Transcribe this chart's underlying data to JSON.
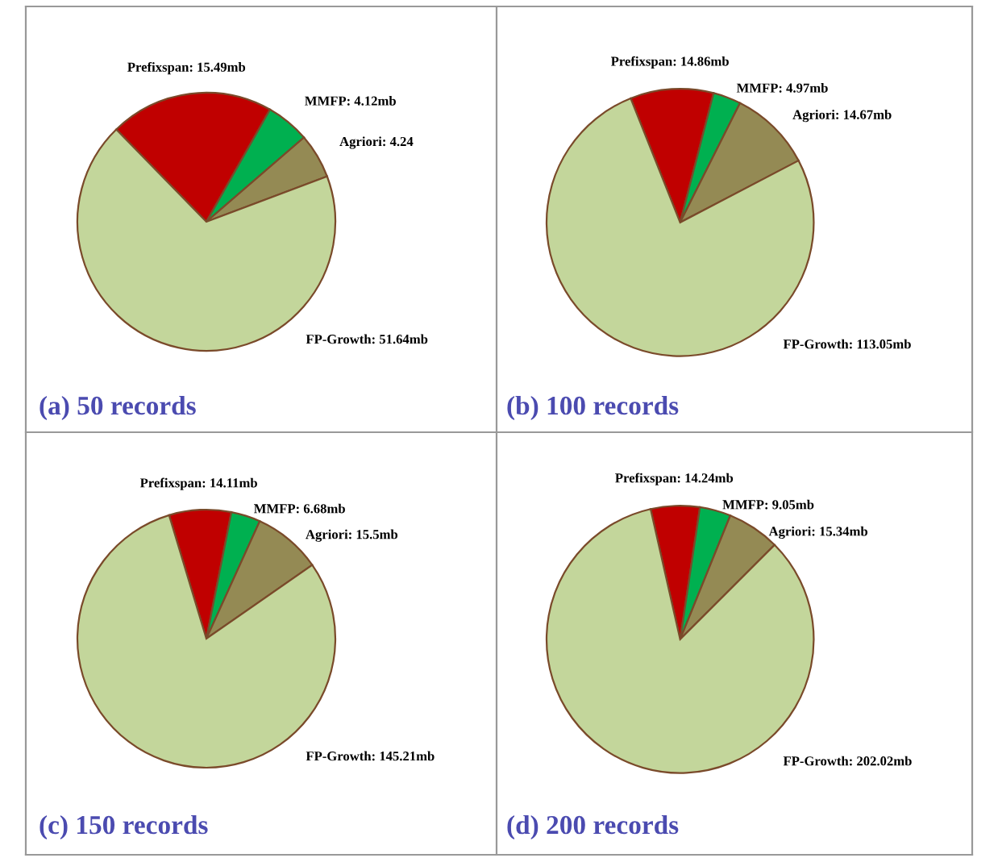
{
  "chart_data": [
    {
      "type": "pie",
      "title": "(a) 50 records",
      "categories": [
        "Prefixspan",
        "MMFP",
        "Agriori",
        "FP-Growth"
      ],
      "values": [
        15.49,
        4.12,
        4.24,
        51.64
      ],
      "value_labels": [
        "15.49mb",
        "4.12mb",
        "4.24",
        "51.64mb"
      ],
      "colors": [
        "#c00000",
        "#00b050",
        "#948a54",
        "#c3d69b"
      ]
    },
    {
      "type": "pie",
      "title": "(b) 100 records",
      "categories": [
        "Prefixspan",
        "MMFP",
        "Agriori",
        "FP-Growth"
      ],
      "values": [
        14.86,
        4.97,
        14.67,
        113.05
      ],
      "value_labels": [
        "14.86mb",
        "4.97mb",
        "14.67mb",
        "113.05mb"
      ],
      "colors": [
        "#c00000",
        "#00b050",
        "#948a54",
        "#c3d69b"
      ]
    },
    {
      "type": "pie",
      "title": "(c) 150 records",
      "categories": [
        "Prefixspan",
        "MMFP",
        "Agriori",
        "FP-Growth"
      ],
      "values": [
        14.11,
        6.68,
        15.5,
        145.21
      ],
      "value_labels": [
        "14.11mb",
        "6.68mb",
        "15.5mb",
        "145.21mb"
      ],
      "colors": [
        "#c00000",
        "#00b050",
        "#948a54",
        "#c3d69b"
      ]
    },
    {
      "type": "pie",
      "title": "(d) 200 records",
      "categories": [
        "Prefixspan",
        "MMFP",
        "Agriori",
        "FP-Growth"
      ],
      "values": [
        14.24,
        9.05,
        15.34,
        202.02
      ],
      "value_labels": [
        "14.24mb",
        "9.05mb",
        "15.34mb",
        "202.02mb"
      ],
      "colors": [
        "#c00000",
        "#00b050",
        "#948a54",
        "#c3d69b"
      ]
    }
  ]
}
